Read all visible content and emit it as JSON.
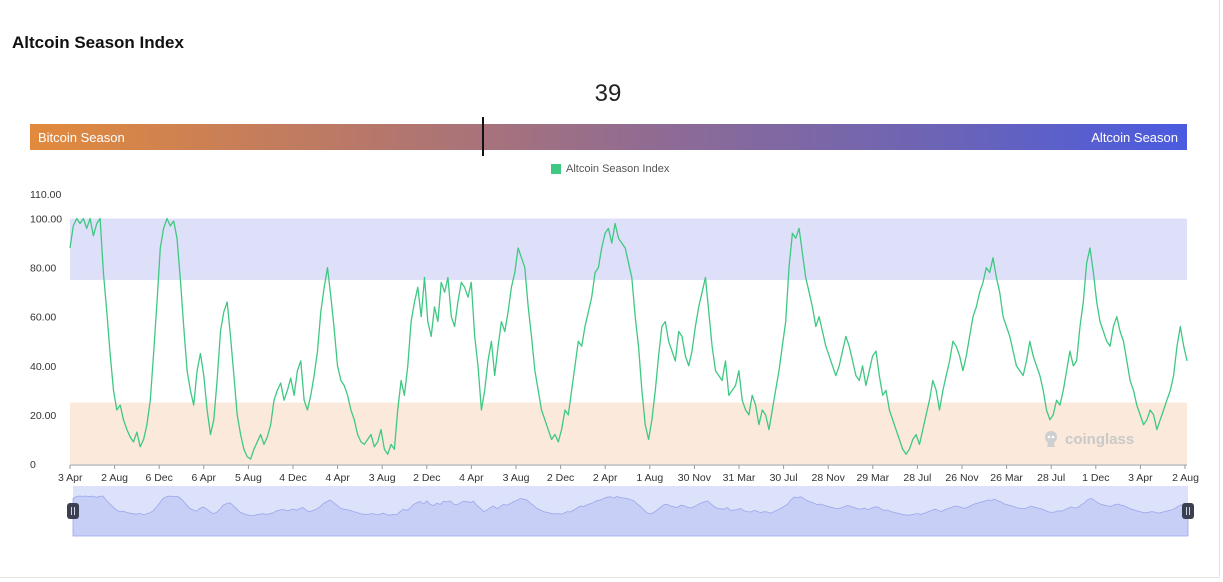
{
  "page": {
    "title": "Altcoin Season Index"
  },
  "gauge": {
    "value": "39",
    "left_label": "Bitcoin Season",
    "right_label": "Altcoin Season",
    "colors": {
      "left": "#e28a3c",
      "right": "#4a5be0"
    }
  },
  "watermark": {
    "text": "coinglass"
  },
  "chart_data": {
    "type": "line",
    "title": "",
    "xlabel": "",
    "ylabel": "",
    "ylim": [
      0,
      110
    ],
    "yticks": [
      "110.00",
      "100.00",
      "80.00",
      "60.00",
      "40.00",
      "20.00",
      "0"
    ],
    "xticks": [
      "3 Apr",
      "2 Aug",
      "6 Dec",
      "6 Apr",
      "5 Aug",
      "4 Dec",
      "4 Apr",
      "3 Aug",
      "2 Dec",
      "4 Apr",
      "3 Aug",
      "2 Dec",
      "2 Apr",
      "1 Aug",
      "30 Nov",
      "31 Mar",
      "30 Jul",
      "28 Nov",
      "29 Mar",
      "28 Jul",
      "26 Nov",
      "26 Mar",
      "28 Jul",
      "1 Dec",
      "3 Apr",
      "2 Aug"
    ],
    "bands": [
      {
        "name": "altcoin-season-band",
        "from": 75,
        "to": 100,
        "color": "#dde0f8"
      },
      {
        "name": "bitcoin-season-band",
        "from": 0,
        "to": 25,
        "color": "#fbeadb"
      }
    ],
    "legend": {
      "position": "top-center",
      "entries": [
        "Altcoin Season Index"
      ]
    },
    "grid": false,
    "series": [
      {
        "name": "Altcoin Season Index",
        "color": "#3fc882",
        "values": [
          88,
          97,
          100,
          98,
          100,
          96,
          100,
          93,
          98,
          100,
          78,
          62,
          45,
          30,
          22,
          24,
          18,
          14,
          11,
          9,
          13,
          7,
          10,
          16,
          26,
          45,
          66,
          88,
          96,
          100,
          97,
          99,
          92,
          75,
          56,
          38,
          30,
          24,
          38,
          45,
          36,
          22,
          12,
          18,
          34,
          54,
          62,
          66,
          52,
          36,
          20,
          12,
          6,
          3,
          2,
          6,
          9,
          12,
          8,
          11,
          16,
          26,
          30,
          33,
          26,
          30,
          35,
          28,
          38,
          42,
          26,
          22,
          28,
          36,
          46,
          62,
          72,
          80,
          68,
          55,
          40,
          34,
          32,
          28,
          22,
          18,
          12,
          9,
          8,
          10,
          12,
          7,
          9,
          14,
          6,
          4,
          8,
          6,
          22,
          34,
          28,
          40,
          58,
          66,
          72,
          60,
          76,
          58,
          52,
          64,
          58,
          74,
          70,
          76,
          60,
          56,
          66,
          74,
          72,
          68,
          74,
          52,
          40,
          22,
          30,
          42,
          50,
          36,
          48,
          58,
          54,
          62,
          72,
          78,
          88,
          84,
          80,
          64,
          52,
          38,
          30,
          22,
          18,
          14,
          10,
          12,
          9,
          14,
          22,
          20,
          30,
          40,
          50,
          48,
          56,
          62,
          68,
          78,
          80,
          88,
          94,
          96,
          90,
          98,
          92,
          90,
          88,
          82,
          76,
          60,
          48,
          30,
          16,
          10,
          18,
          30,
          44,
          56,
          58,
          50,
          46,
          42,
          54,
          52,
          44,
          40,
          46,
          56,
          64,
          70,
          76,
          62,
          48,
          38,
          36,
          34,
          42,
          28,
          30,
          32,
          38,
          26,
          22,
          20,
          28,
          24,
          16,
          22,
          20,
          14,
          22,
          30,
          38,
          48,
          58,
          80,
          94,
          92,
          96,
          86,
          76,
          70,
          64,
          56,
          60,
          54,
          48,
          44,
          40,
          36,
          40,
          46,
          52,
          48,
          42,
          36,
          34,
          40,
          32,
          38,
          44,
          46,
          36,
          28,
          30,
          22,
          18,
          14,
          10,
          6,
          4,
          6,
          10,
          12,
          8,
          14,
          20,
          26,
          34,
          30,
          22,
          30,
          36,
          42,
          50,
          48,
          44,
          38,
          44,
          52,
          60,
          64,
          70,
          74,
          80,
          78,
          84,
          76,
          70,
          60,
          56,
          52,
          46,
          40,
          38,
          36,
          42,
          50,
          44,
          40,
          36,
          30,
          22,
          18,
          20,
          26,
          24,
          30,
          38,
          46,
          40,
          42,
          56,
          66,
          82,
          88,
          78,
          66,
          58,
          54,
          50,
          48,
          56,
          60,
          54,
          50,
          42,
          34,
          30,
          24,
          20,
          16,
          18,
          22,
          20,
          14,
          18,
          22,
          26,
          30,
          36,
          48,
          56,
          48,
          42
        ]
      }
    ]
  }
}
